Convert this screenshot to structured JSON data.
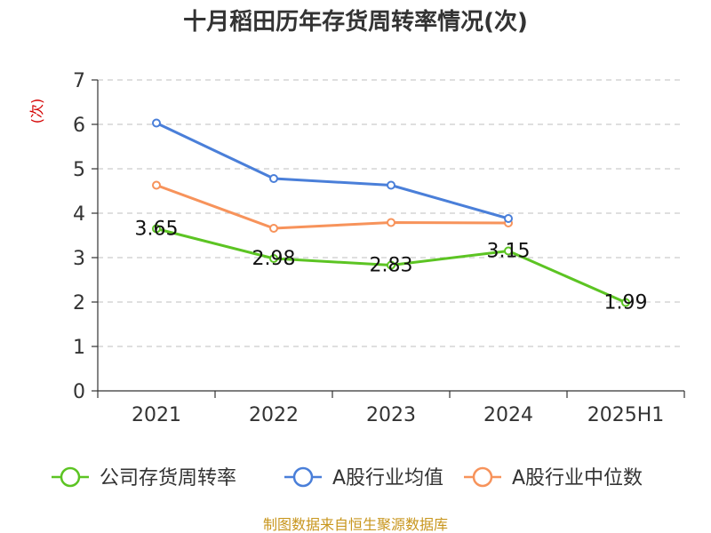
{
  "chart_data": {
    "type": "line",
    "title": "十月稻田历年存货周转率情况(次)",
    "ylabel": "(次)",
    "xlabel": "",
    "ylim": [
      0,
      7
    ],
    "yticks": [
      0,
      1,
      2,
      3,
      4,
      5,
      6,
      7
    ],
    "grid": true,
    "categories": [
      "2021",
      "2022",
      "2023",
      "2024",
      "2025H1"
    ],
    "series": [
      {
        "name": "公司存货周转率",
        "color": "#5cc423",
        "values": [
          3.65,
          2.98,
          2.83,
          3.15,
          1.99
        ],
        "show_labels": true
      },
      {
        "name": "A股行业均值",
        "color": "#4a7fd9",
        "values": [
          6.03,
          4.78,
          4.63,
          3.88,
          null
        ],
        "show_labels": false
      },
      {
        "name": "A股行业中位数",
        "color": "#f7935b",
        "values": [
          4.63,
          3.66,
          3.79,
          3.78,
          null
        ],
        "show_labels": false
      }
    ],
    "legend_position": "bottom",
    "source": "制图数据来自恒生聚源数据库"
  }
}
